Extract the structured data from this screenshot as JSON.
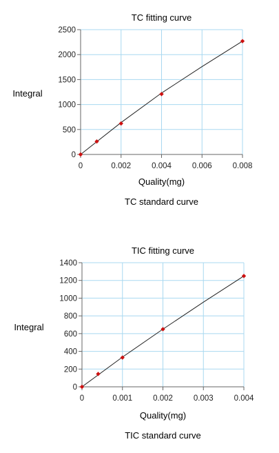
{
  "charts": [
    {
      "id": "tc",
      "caption": "TC standard curve",
      "chart_data": {
        "type": "scatter",
        "title": "TC fitting curve",
        "xlabel": "Quality(mg)",
        "ylabel": "Integral",
        "xlim": [
          0,
          0.008
        ],
        "ylim": [
          0,
          2500
        ],
        "xticks": [
          0,
          0.002,
          0.004,
          0.006,
          0.008
        ],
        "xtick_labels": [
          "0",
          "0.002",
          "0.004",
          "0.006",
          "0.008"
        ],
        "yticks": [
          0,
          500,
          1000,
          1500,
          2000,
          2500
        ],
        "ytick_labels": [
          "0",
          "500",
          "1000",
          "1500",
          "2000",
          "2500"
        ],
        "grid": true,
        "series": [
          {
            "type": "scatter",
            "x": [
              0,
              0.0008,
              0.002,
              0.004,
              0.008
            ],
            "y": [
              0,
              260,
              620,
              1210,
              2270
            ],
            "color": "#cc1111"
          },
          {
            "type": "line",
            "x": [
              0,
              0.002,
              0.004,
              0.006,
              0.008
            ],
            "y": [
              0,
              640,
              1230,
              1760,
              2270
            ],
            "color": "#222222"
          }
        ]
      }
    },
    {
      "id": "tic",
      "caption": "TIC standard curve",
      "chart_data": {
        "type": "scatter",
        "title": "TIC fitting curve",
        "xlabel": "Quality(mg)",
        "ylabel": "Integral",
        "xlim": [
          0,
          0.004
        ],
        "ylim": [
          0,
          1400
        ],
        "xticks": [
          0,
          0.001,
          0.002,
          0.003,
          0.004
        ],
        "xtick_labels": [
          "0",
          "0.001",
          "0.002",
          "0.003",
          "0.004"
        ],
        "yticks": [
          0,
          200,
          400,
          600,
          800,
          1000,
          1200,
          1400
        ],
        "ytick_labels": [
          "0",
          "200",
          "400",
          "600",
          "800",
          "1000",
          "1200",
          "1400"
        ],
        "grid": true,
        "series": [
          {
            "type": "scatter",
            "x": [
              0,
              0.0004,
              0.001,
              0.002,
              0.004
            ],
            "y": [
              0,
              145,
              330,
              650,
              1250
            ],
            "color": "#cc1111"
          },
          {
            "type": "line",
            "x": [
              0,
              0.001,
              0.002,
              0.003,
              0.004
            ],
            "y": [
              0,
              335,
              650,
              955,
              1250
            ],
            "color": "#222222"
          }
        ]
      }
    }
  ]
}
